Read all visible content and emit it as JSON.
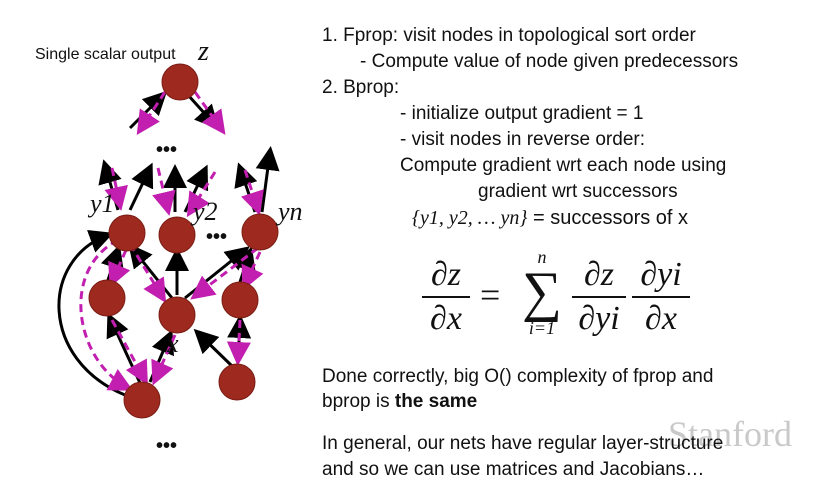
{
  "diagram": {
    "output_label": "Single scalar output",
    "output_var": "z",
    "y1_label": "y1",
    "y2_label": "y2",
    "yn_label": "yn",
    "x_label": "x",
    "dots": "•••",
    "node_color": "#9e2a1f",
    "forward_arrow_color": "#000000",
    "backward_arrow_color": "#c21fb0"
  },
  "steps": {
    "step1": "1.  Fprop: visit nodes in topological sort order",
    "step1_sub": "-   Compute value of node given predecessors",
    "step2": "2.  Bprop:",
    "step2_a": "- initialize output gradient = 1",
    "step2_b": "- visit nodes in reverse order:",
    "step2_c": "Compute gradient wrt each node using",
    "step2_d": "gradient wrt successors",
    "successors_set": "{y1, y2, … yn}",
    "successors_text": "= successors of x"
  },
  "equation": {
    "lhs_num": "∂z",
    "lhs_den": "∂x",
    "equals": "=",
    "sum": "∑",
    "sum_top": "n",
    "sum_bottom": "i=1",
    "t1_num": "∂z",
    "t1_den": "∂yi",
    "t2_num": "∂yi",
    "t2_den": "∂x"
  },
  "notes": {
    "note1_line1": "Done correctly, big O() complexity of fprop and",
    "note1_line2": "bprop is ",
    "note1_bold": "the same",
    "note2_line1": "In general, our nets have regular layer-structure",
    "note2_line2": "and so we can use matrices and Jacobians…"
  },
  "branding": {
    "logo": "Stanford"
  }
}
